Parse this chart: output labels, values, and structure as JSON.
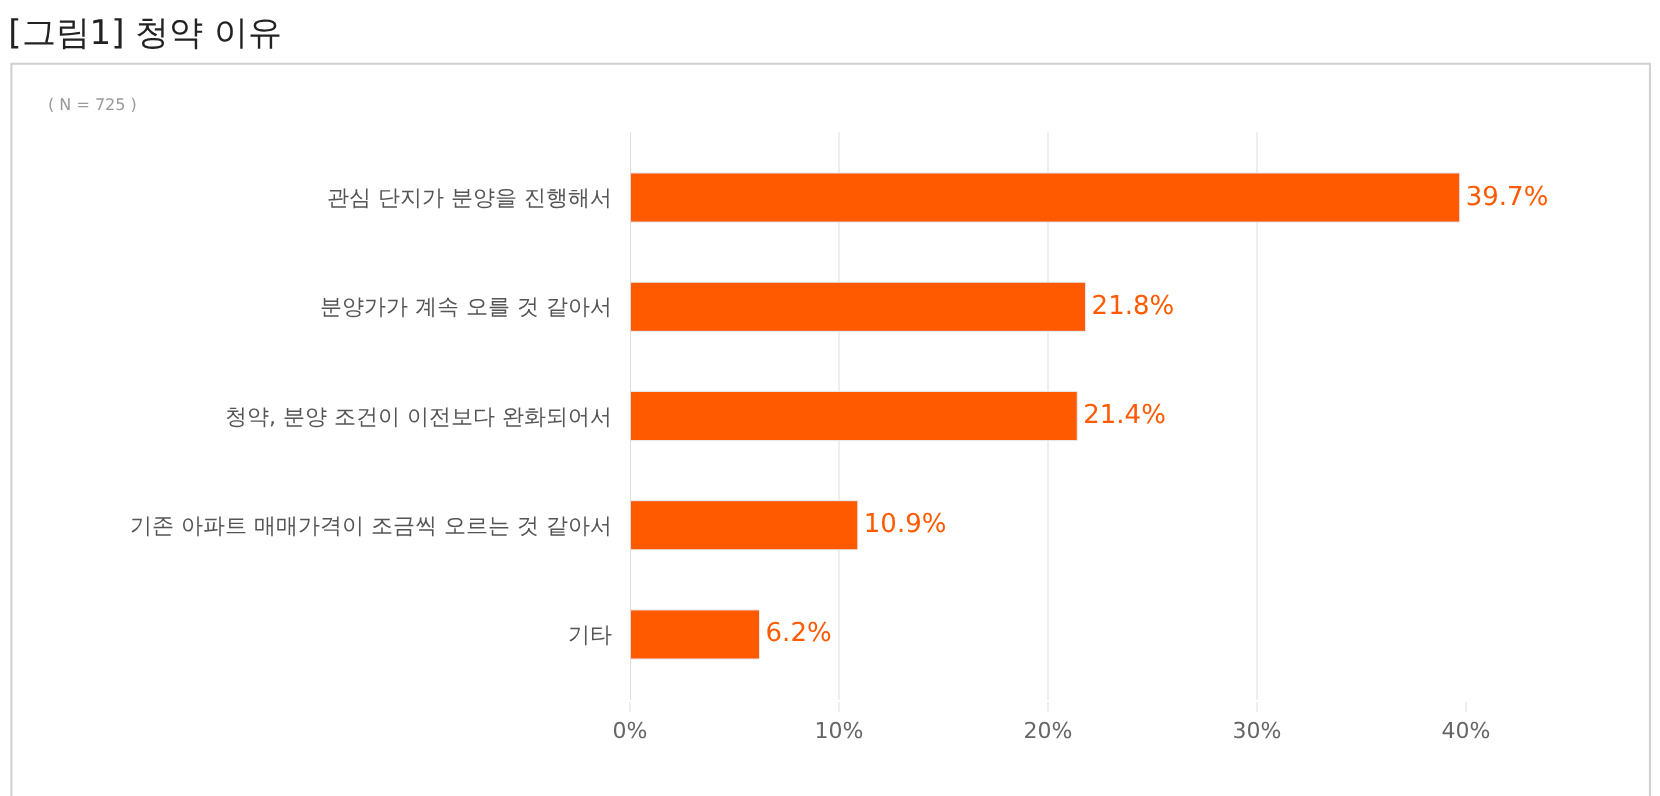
{
  "chart_data": {
    "type": "bar",
    "orientation": "horizontal",
    "title": "[그림1] 청약 이유",
    "annotations": [
      "( N = 725 )"
    ],
    "categories": [
      "관심 단지가 분양을 진행해서",
      "분양가가 계속 오를 것 같아서",
      "청약, 분양 조건이 이전보다 완화되어서",
      "기존 아파트 매매가격이 조금씩 오르는 것 같아서",
      "기타"
    ],
    "values": [
      39.7,
      21.8,
      21.4,
      10.9,
      6.2
    ],
    "value_labels": [
      "39.7%",
      "21.8%",
      "21.4%",
      "10.9%",
      "6.2%"
    ],
    "color": "#ff5a00",
    "xlim": [
      0,
      40
    ],
    "xticks": [
      {
        "value": 0,
        "label": "0%"
      },
      {
        "value": 10,
        "label": "10%"
      },
      {
        "value": 20,
        "label": "20%"
      },
      {
        "value": 30,
        "label": "30%"
      },
      {
        "value": 40,
        "label": "40%"
      }
    ],
    "grid": "x",
    "legend": false
  }
}
